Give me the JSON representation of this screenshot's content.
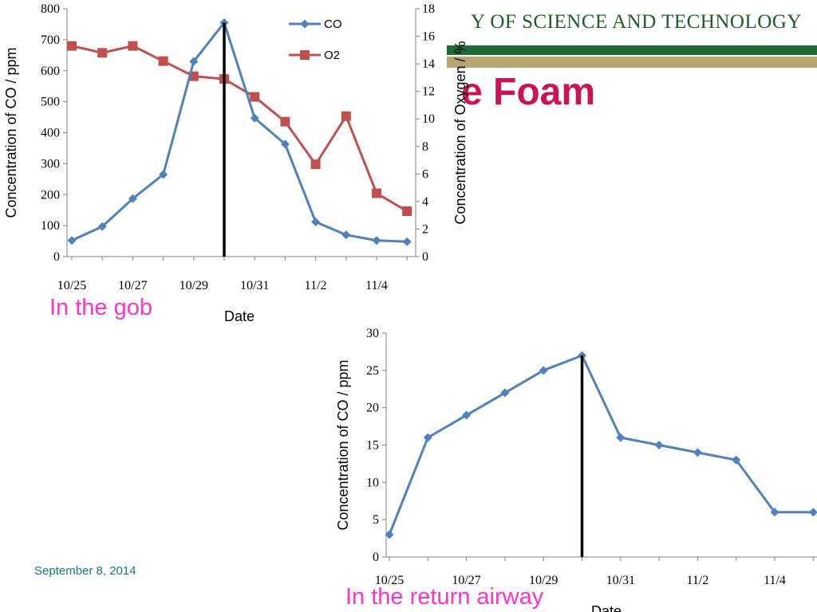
{
  "slide": {
    "header": "Y OF SCIENCE AND TECHNOLOGY",
    "title": "e Foam",
    "caption_gob": "In the gob",
    "caption_return": "In the return airway",
    "footer_date": "September 8, 2014",
    "colors": {
      "green_bar": "#1d6a36",
      "tan_bar": "#b8a574",
      "title": "#cc1455",
      "caption": "#ff33cc",
      "date": "#147a7a",
      "co_series": "#4f81bd",
      "o2_series": "#c0504d"
    }
  },
  "chart_data": [
    {
      "type": "line",
      "title": "",
      "xlabel": "Date",
      "ylabel": "Concentration of CO / ppm",
      "y2label": "Concentration of Oxygen / %",
      "x_tick_labels": [
        "10/25",
        "10/27",
        "10/29",
        "10/31",
        "11/2",
        "11/4"
      ],
      "x": [
        "10/25",
        "10/26",
        "10/27",
        "10/28",
        "10/29",
        "10/30",
        "10/31",
        "11/1",
        "11/2",
        "11/3",
        "11/4",
        "11/5"
      ],
      "ylim": [
        0,
        800
      ],
      "yticks": [
        0,
        100,
        200,
        300,
        400,
        500,
        600,
        700,
        800
      ],
      "y2lim": [
        0,
        18
      ],
      "y2ticks": [
        0,
        2,
        4,
        6,
        8,
        10,
        12,
        14,
        16,
        18
      ],
      "legend_position": "top-right",
      "marker_line_date": "10/30",
      "series": [
        {
          "name": "CO",
          "axis": "left",
          "color": "#4f81bd",
          "marker": "diamond",
          "values": [
            52,
            97,
            187,
            265,
            630,
            755,
            447,
            363,
            112,
            70,
            52,
            48
          ]
        },
        {
          "name": "O2",
          "axis": "right",
          "color": "#c0504d",
          "marker": "square",
          "values": [
            15.3,
            14.8,
            15.3,
            14.2,
            13.1,
            12.9,
            11.6,
            9.8,
            6.7,
            10.2,
            4.6,
            3.3
          ]
        }
      ]
    },
    {
      "type": "line",
      "title": "",
      "xlabel": "Date",
      "ylabel": "Concentration of CO / ppm",
      "x_tick_labels": [
        "10/25",
        "10/27",
        "10/29",
        "10/31",
        "11/2",
        "11/4"
      ],
      "x": [
        "10/25",
        "10/26",
        "10/27",
        "10/28",
        "10/29",
        "10/30",
        "10/31",
        "11/1",
        "11/2",
        "11/3",
        "11/4",
        "11/5"
      ],
      "ylim": [
        0,
        30
      ],
      "yticks": [
        0,
        5,
        10,
        15,
        20,
        25,
        30
      ],
      "marker_line_date": "10/30",
      "series": [
        {
          "color": "#4f81bd",
          "marker": "diamond",
          "values": [
            3,
            16,
            19,
            22,
            25,
            27,
            16,
            15,
            14,
            13,
            6,
            6
          ]
        }
      ]
    }
  ]
}
